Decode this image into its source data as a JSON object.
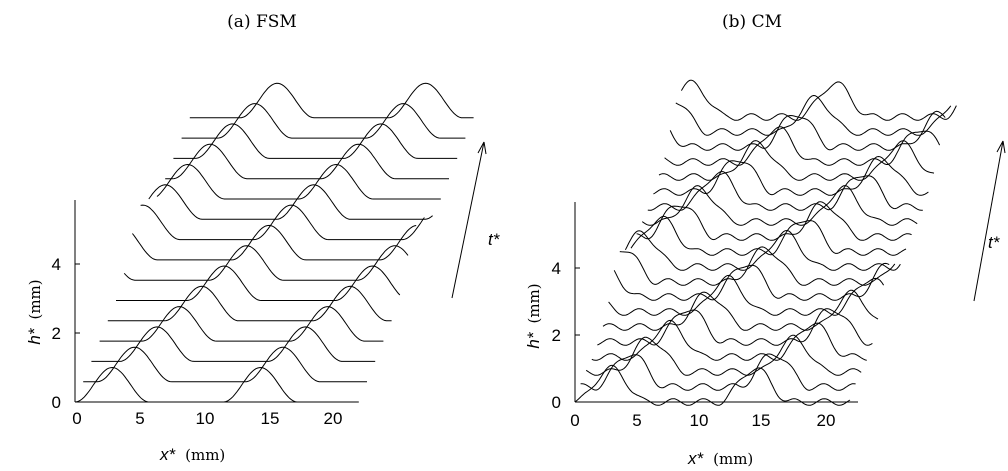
{
  "chart_data": [
    {
      "type": "waterfall-line",
      "title": "(a) FSM",
      "xlabel_var": "x*",
      "xlabel_unit": "(mm)",
      "ylabel_var": "h*",
      "ylabel_unit": "(mm)",
      "time_label": "t*",
      "x_ticks": [
        "0",
        "5",
        "10",
        "15",
        "20"
      ],
      "y_ticks": [
        "0",
        "2",
        "4"
      ],
      "xlim": [
        0,
        22
      ],
      "ylim": [
        0,
        6
      ],
      "n_traces": 15,
      "wave": {
        "wavelength_mm": 11.5,
        "amplitude_mm": 1.0,
        "ripple_mm": 0.0,
        "speed_mm_per_step": 1.1
      },
      "grid": false,
      "legend": "none"
    },
    {
      "type": "waterfall-line",
      "title": "(b) CM",
      "xlabel_var": "x*",
      "xlabel_unit": "(mm)",
      "ylabel_var": "h*",
      "ylabel_unit": "(mm)",
      "time_label": "t*",
      "x_ticks": [
        "0",
        "5",
        "10",
        "15",
        "20"
      ],
      "y_ticks": [
        "0",
        "2",
        "4"
      ],
      "xlim": [
        0,
        22
      ],
      "ylim": [
        0,
        6
      ],
      "n_traces": 20,
      "wave": {
        "wavelength_mm": 11.5,
        "amplitude_mm": 1.0,
        "ripple_mm": 0.1,
        "speed_mm_per_step": 1.1
      },
      "grid": false,
      "legend": "none"
    }
  ]
}
